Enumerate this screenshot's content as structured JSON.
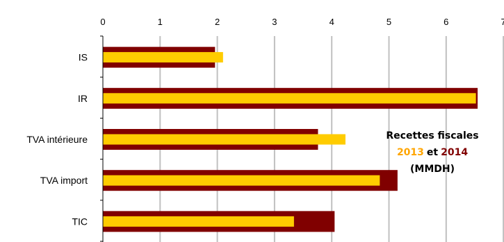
{
  "chart_data": {
    "type": "bar",
    "orientation": "horizontal",
    "categories": [
      "IS",
      "IR",
      "TVA intérieure",
      "TVA import",
      "TIC"
    ],
    "series": [
      {
        "name": "2014",
        "values": [
          1.96,
          6.55,
          3.76,
          5.15,
          4.05
        ],
        "color": "#800000"
      },
      {
        "name": "2013",
        "values": [
          2.1,
          6.52,
          4.24,
          4.84,
          3.34
        ],
        "color": "#FFCC00"
      }
    ],
    "xlim": [
      0,
      7
    ],
    "xticks": [
      "0",
      "1",
      "2",
      "3",
      "4",
      "5",
      "6",
      "7"
    ],
    "xaxis_position": "top",
    "grid": true,
    "annotation": {
      "line1": "Recettes fiscales",
      "year1": "2013",
      "connector": "et",
      "year2": "2014",
      "line3": "(MMDH)",
      "text_color": "#000000",
      "year1_color": "#FFA500",
      "year2_color": "#800000"
    }
  }
}
